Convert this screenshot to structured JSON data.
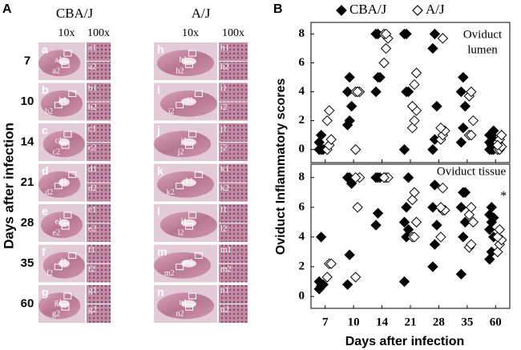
{
  "panel_a": {
    "label": "A",
    "row_title": "Days after infection",
    "rows": [
      "7",
      "10",
      "14",
      "21",
      "28",
      "35",
      "60"
    ],
    "strains": [
      {
        "name": "CBA/J",
        "magnifications": [
          "10x",
          "100x"
        ],
        "panels": [
          {
            "letter": "a",
            "sub": [
              "a1",
              "a2"
            ]
          },
          {
            "letter": "b",
            "sub": [
              "b1",
              "b2"
            ]
          },
          {
            "letter": "c",
            "sub": [
              "c1",
              "c2"
            ]
          },
          {
            "letter": "d",
            "sub": [
              "d1",
              "d2"
            ]
          },
          {
            "letter": "e",
            "sub": [
              "e1",
              "e2"
            ]
          },
          {
            "letter": "f",
            "sub": [
              "f1",
              "f2"
            ]
          },
          {
            "letter": "g",
            "sub": [
              "g1",
              "g2"
            ]
          }
        ]
      },
      {
        "name": "A/J",
        "magnifications": [
          "10x",
          "100x"
        ],
        "panels": [
          {
            "letter": "h",
            "sub": [
              "h1",
              "h2"
            ]
          },
          {
            "letter": "i",
            "sub": [
              "i1",
              "i2"
            ]
          },
          {
            "letter": "j",
            "sub": [
              "j1",
              "j2"
            ]
          },
          {
            "letter": "k",
            "sub": [
              "k1",
              "k2"
            ]
          },
          {
            "letter": "l",
            "sub": [
              "l1",
              "l2"
            ]
          },
          {
            "letter": "m",
            "sub": [
              "m1",
              "m2"
            ]
          },
          {
            "letter": "n",
            "sub": [
              "n1",
              "n2"
            ]
          }
        ]
      }
    ]
  },
  "panel_b": {
    "label": "B",
    "ylabel": "Oviduct Inflammatory scores",
    "xlabel": "Days after infection"
  },
  "chart_data": [
    {
      "type": "scatter",
      "annotation_lines": [
        "Oviduct",
        "lumen"
      ],
      "ylim": [
        -0.9,
        8.8
      ],
      "yticks": [
        0,
        2,
        4,
        6,
        8
      ],
      "series": [
        {
          "name": "CBA/J",
          "color": "#000000",
          "filled": true,
          "values": [
            [
              0,
              0,
              0,
              0.5,
              1
            ],
            [
              1.7,
              2,
              3,
              4,
              5
            ],
            [
              4,
              5,
              5,
              8,
              8
            ],
            [
              0,
              4,
              4,
              8,
              8
            ],
            [
              0,
              0.7,
              3,
              7,
              8
            ],
            [
              0.5,
              1.5,
              3,
              4,
              5
            ],
            [
              0,
              0,
              0,
              0.5,
              1,
              1.3,
              1,
              0.3,
              0.7
            ]
          ]
        },
        {
          "name": "A/J",
          "color": "#000000",
          "filled": false,
          "values": [
            [
              0,
              0.3,
              0.7,
              2,
              2.7
            ],
            [
              0,
              4,
              4,
              4,
              4
            ],
            [
              6,
              7,
              7.7,
              8,
              8
            ],
            [
              1.5,
              2,
              2.7,
              3,
              4.5,
              5.3
            ],
            [
              0.7,
              1,
              1.3,
              1.5,
              7.7
            ],
            [
              1,
              1,
              2,
              3.7,
              4
            ],
            [
              0,
              0,
              0.2,
              0.5,
              0.7,
              1,
              0.3
            ]
          ]
        }
      ]
    },
    {
      "type": "scatter",
      "annotation": "Oviduct tissue",
      "marker_note": "*",
      "categories": [
        "7",
        "10",
        "14",
        "21",
        "28",
        "35",
        "60"
      ],
      "ylim": [
        -0.8,
        8.9
      ],
      "yticks": [
        0,
        2,
        4,
        6,
        8
      ],
      "series": [
        {
          "color": "#000000",
          "filled": true,
          "values": [
            [
              0.5,
              0.7,
              0.8,
              1,
              4
            ],
            [
              0.8,
              2.8,
              7.6,
              8,
              8
            ],
            [
              4.8,
              5.6,
              8,
              8,
              8
            ],
            [
              1,
              4,
              4.5,
              5,
              6,
              8
            ],
            [
              2,
              3.5,
              4.8,
              6,
              7.5
            ],
            [
              1.5,
              4,
              5,
              6,
              7,
              7
            ],
            [
              2.5,
              3,
              4,
              4.5,
              5,
              5.3,
              5.5,
              6
            ]
          ]
        },
        {
          "color": "#000000",
          "filled": false,
          "values": [
            [
              1.3,
              2.2,
              2.2
            ],
            [
              1.3,
              6,
              8,
              8
            ],
            [
              8,
              8,
              8,
              8
            ],
            [
              4,
              4,
              5,
              6.5,
              7
            ],
            [
              4,
              5.8,
              5.8,
              6,
              7.3
            ],
            [
              3.3,
              3.5,
              5,
              5.5,
              6
            ],
            [
              3,
              3.5,
              3.8,
              4,
              4.5
            ]
          ]
        }
      ]
    }
  ]
}
